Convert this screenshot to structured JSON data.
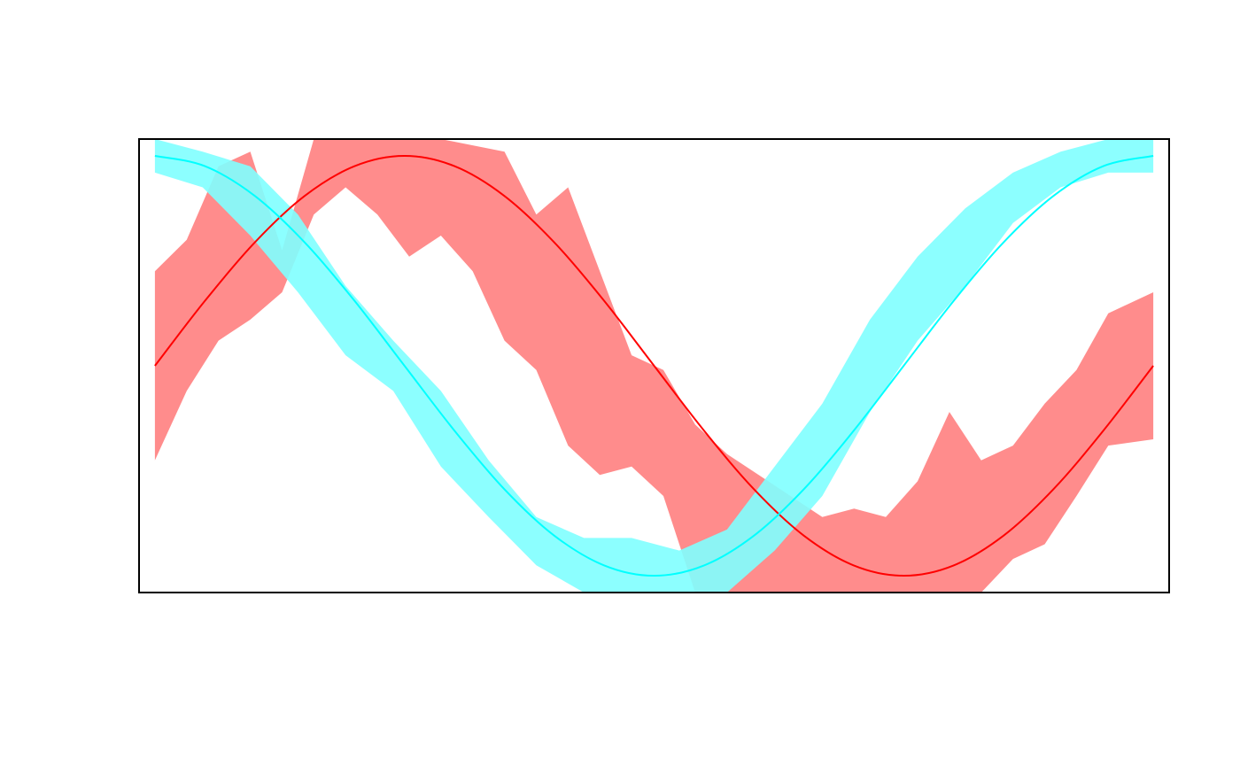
{
  "chart_data": {
    "type": "area",
    "title": "",
    "xlabel": "",
    "ylabel": "",
    "axes_shown": false,
    "grid": false,
    "legend": "none",
    "xlim": [
      -0.1,
      6.383
    ],
    "ylim": [
      -1.08,
      1.08
    ],
    "series": [
      {
        "color": "#ff0000",
        "band_color": "#ff8080",
        "line": {
          "x": [
            0,
            0.3142,
            0.6283,
            0.9425,
            1.2566,
            1.5708,
            1.885,
            2.1991,
            2.5133,
            2.8274,
            3.1416,
            3.4558,
            3.7699,
            4.0841,
            4.3982,
            4.7124,
            5.0265,
            5.3407,
            5.6549,
            5.969,
            6.2832
          ],
          "y": [
            0,
            0.309,
            0.5878,
            0.809,
            0.9511,
            1,
            0.9511,
            0.809,
            0.5878,
            0.309,
            0,
            -0.309,
            -0.5878,
            -0.809,
            -0.9511,
            -1,
            -0.9511,
            -0.809,
            -0.5878,
            -0.309,
            0
          ]
        },
        "band": {
          "x": [
            0,
            0.2,
            0.4,
            0.6,
            0.8,
            1.0,
            1.2,
            1.4,
            1.6,
            1.8,
            2.0,
            2.2,
            2.4,
            2.6,
            2.8,
            3.0,
            3.2,
            3.4,
            3.6,
            3.8,
            4.0,
            4.2,
            4.4,
            4.6,
            4.8,
            5.0,
            5.2,
            5.4,
            5.6,
            5.8,
            6.0,
            6.2832
          ],
          "upper": [
            0.45,
            0.6,
            0.95,
            1.02,
            0.55,
            1.08,
            1.08,
            1.08,
            1.08,
            1.08,
            1.05,
            1.02,
            0.72,
            0.85,
            0.45,
            0.05,
            -0.02,
            -0.28,
            -0.42,
            -0.52,
            -0.62,
            -0.72,
            -0.68,
            -0.72,
            -0.55,
            -0.22,
            -0.45,
            -0.38,
            -0.18,
            -0.02,
            0.25,
            0.35
          ],
          "lower": [
            -0.45,
            -0.12,
            0.12,
            0.22,
            0.35,
            0.72,
            0.85,
            0.72,
            0.52,
            0.62,
            0.45,
            0.12,
            -0.02,
            -0.38,
            -0.52,
            -0.48,
            -0.62,
            -1.08,
            -1.08,
            -1.08,
            -1.08,
            -1.08,
            -1.08,
            -1.08,
            -1.08,
            -1.08,
            -1.08,
            -0.92,
            -0.85,
            -0.62,
            -0.38,
            -0.35
          ]
        }
      },
      {
        "color": "#00ffff",
        "band_color": "#80ffff",
        "line": {
          "x": [
            0,
            0.3142,
            0.6283,
            0.9425,
            1.2566,
            1.5708,
            1.885,
            2.1991,
            2.5133,
            2.8274,
            3.1416,
            3.4558,
            3.7699,
            4.0841,
            4.3982,
            4.7124,
            5.0265,
            5.3407,
            5.6549,
            5.969,
            6.2832
          ],
          "y": [
            1,
            0.9511,
            0.809,
            0.5878,
            0.309,
            0,
            -0.309,
            -0.5878,
            -0.809,
            -0.9511,
            -1,
            -0.9511,
            -0.809,
            -0.5878,
            -0.309,
            0,
            0.309,
            0.5878,
            0.809,
            0.9511,
            1
          ]
        },
        "band": {
          "x": [
            0,
            0.3,
            0.6,
            0.9,
            1.2,
            1.5,
            1.8,
            2.1,
            2.4,
            2.7,
            3.0,
            3.3,
            3.6,
            3.9,
            4.2,
            4.5,
            4.8,
            5.1,
            5.4,
            5.7,
            6.0,
            6.2832
          ],
          "upper": [
            1.08,
            1.02,
            0.95,
            0.72,
            0.38,
            0.12,
            -0.12,
            -0.45,
            -0.72,
            -0.82,
            -0.82,
            -0.88,
            -0.78,
            -0.48,
            -0.18,
            0.22,
            0.52,
            0.75,
            0.92,
            1.02,
            1.08,
            1.08
          ],
          "lower": [
            0.92,
            0.85,
            0.62,
            0.35,
            0.05,
            -0.12,
            -0.48,
            -0.72,
            -0.95,
            -1.08,
            -1.08,
            -1.08,
            -1.08,
            -0.88,
            -0.62,
            -0.22,
            0.12,
            0.38,
            0.68,
            0.85,
            0.92,
            0.92
          ]
        }
      }
    ]
  }
}
